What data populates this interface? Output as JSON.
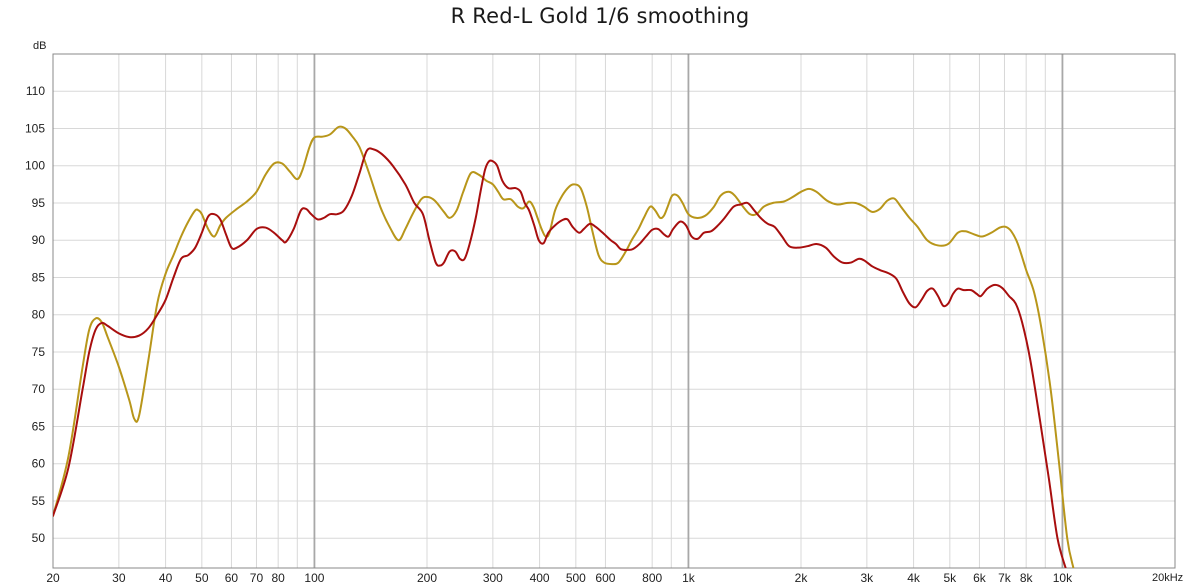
{
  "chart_data": {
    "type": "line",
    "title": "R Red-L Gold 1/6 smoothing",
    "ylabel": "dB",
    "xunit_label": "20kHz",
    "x_scale": "log",
    "xlim": [
      20,
      20000
    ],
    "ylim": [
      46,
      115
    ],
    "grid": true,
    "colors": {
      "grid_minor": "#d8d8d8",
      "grid_major": "#a8a8a8",
      "frame": "#888888"
    },
    "y_ticks": [
      50,
      55,
      60,
      65,
      70,
      75,
      80,
      85,
      90,
      95,
      100,
      105,
      110
    ],
    "x_ticks": [
      {
        "value": 20,
        "label": "20"
      },
      {
        "value": 30,
        "label": "30"
      },
      {
        "value": 40,
        "label": "40"
      },
      {
        "value": 50,
        "label": "50"
      },
      {
        "value": 60,
        "label": "60"
      },
      {
        "value": 70,
        "label": "70"
      },
      {
        "value": 80,
        "label": "80"
      },
      {
        "value": 100,
        "label": "100"
      },
      {
        "value": 200,
        "label": "200"
      },
      {
        "value": 300,
        "label": "300"
      },
      {
        "value": 400,
        "label": "400"
      },
      {
        "value": 500,
        "label": "500"
      },
      {
        "value": 600,
        "label": "600"
      },
      {
        "value": 800,
        "label": "800"
      },
      {
        "value": 1000,
        "label": "1k"
      },
      {
        "value": 2000,
        "label": "2k"
      },
      {
        "value": 3000,
        "label": "3k"
      },
      {
        "value": 4000,
        "label": "4k"
      },
      {
        "value": 5000,
        "label": "5k"
      },
      {
        "value": 6000,
        "label": "6k"
      },
      {
        "value": 7000,
        "label": "7k"
      },
      {
        "value": 8000,
        "label": "8k"
      },
      {
        "value": 10000,
        "label": "10k"
      }
    ],
    "x_minor_grid": [
      90,
      900,
      9000
    ],
    "x_major_grid": [
      100,
      1000,
      10000
    ],
    "series": [
      {
        "color": "#b8961a",
        "points": [
          [
            20,
            53
          ],
          [
            22,
            61
          ],
          [
            24,
            73
          ],
          [
            25,
            78
          ],
          [
            26,
            79.5
          ],
          [
            27,
            79
          ],
          [
            28,
            77
          ],
          [
            30,
            73
          ],
          [
            32,
            68.5
          ],
          [
            33,
            66
          ],
          [
            34,
            66.5
          ],
          [
            36,
            74
          ],
          [
            38,
            81.5
          ],
          [
            40,
            85.5
          ],
          [
            42,
            88
          ],
          [
            44,
            90.5
          ],
          [
            46,
            92.5
          ],
          [
            48,
            94
          ],
          [
            49,
            94
          ],
          [
            50,
            93.5
          ],
          [
            52,
            91.5
          ],
          [
            54,
            90.5
          ],
          [
            56,
            92
          ],
          [
            58,
            93
          ],
          [
            62,
            94.2
          ],
          [
            66,
            95.2
          ],
          [
            70,
            96.5
          ],
          [
            74,
            98.8
          ],
          [
            78,
            100.3
          ],
          [
            82,
            100.3
          ],
          [
            86,
            99.2
          ],
          [
            90,
            98.2
          ],
          [
            93,
            99.5
          ],
          [
            97,
            102.5
          ],
          [
            100,
            103.8
          ],
          [
            105,
            103.9
          ],
          [
            110,
            104.2
          ],
          [
            116,
            105.2
          ],
          [
            121,
            105
          ],
          [
            126,
            104
          ],
          [
            132,
            102.5
          ],
          [
            140,
            99
          ],
          [
            150,
            94.5
          ],
          [
            160,
            91.5
          ],
          [
            168,
            90
          ],
          [
            175,
            91.5
          ],
          [
            183,
            93.5
          ],
          [
            193,
            95.5
          ],
          [
            201,
            95.8
          ],
          [
            210,
            95.3
          ],
          [
            222,
            93.8
          ],
          [
            230,
            93
          ],
          [
            240,
            94
          ],
          [
            250,
            96.5
          ],
          [
            262,
            99
          ],
          [
            275,
            98.8
          ],
          [
            288,
            98
          ],
          [
            300,
            97.5
          ],
          [
            310,
            96.5
          ],
          [
            320,
            95.5
          ],
          [
            335,
            95.5
          ],
          [
            350,
            94.5
          ],
          [
            362,
            94.3
          ],
          [
            375,
            95.2
          ],
          [
            385,
            94.5
          ],
          [
            395,
            93
          ],
          [
            405,
            91.5
          ],
          [
            415,
            90.5
          ],
          [
            425,
            91
          ],
          [
            440,
            94
          ],
          [
            460,
            96
          ],
          [
            480,
            97.2
          ],
          [
            495,
            97.5
          ],
          [
            515,
            97
          ],
          [
            535,
            94.5
          ],
          [
            555,
            91
          ],
          [
            575,
            88
          ],
          [
            595,
            87
          ],
          [
            625,
            86.8
          ],
          [
            650,
            87
          ],
          [
            680,
            88.5
          ],
          [
            705,
            90
          ],
          [
            735,
            91.5
          ],
          [
            760,
            93
          ],
          [
            790,
            94.5
          ],
          [
            815,
            94
          ],
          [
            840,
            93
          ],
          [
            860,
            93.3
          ],
          [
            880,
            94.5
          ],
          [
            905,
            96
          ],
          [
            935,
            96
          ],
          [
            965,
            95
          ],
          [
            1000,
            93.5
          ],
          [
            1050,
            93
          ],
          [
            1110,
            93.3
          ],
          [
            1170,
            94.5
          ],
          [
            1220,
            96
          ],
          [
            1280,
            96.5
          ],
          [
            1330,
            96
          ],
          [
            1400,
            94.5
          ],
          [
            1460,
            93.5
          ],
          [
            1520,
            93.5
          ],
          [
            1590,
            94.5
          ],
          [
            1680,
            95
          ],
          [
            1800,
            95.2
          ],
          [
            1900,
            95.8
          ],
          [
            2000,
            96.5
          ],
          [
            2100,
            96.9
          ],
          [
            2200,
            96.5
          ],
          [
            2350,
            95.3
          ],
          [
            2500,
            94.8
          ],
          [
            2650,
            95
          ],
          [
            2800,
            95
          ],
          [
            2950,
            94.5
          ],
          [
            3100,
            93.8
          ],
          [
            3250,
            94.2
          ],
          [
            3400,
            95.3
          ],
          [
            3550,
            95.6
          ],
          [
            3700,
            94.5
          ],
          [
            3900,
            93
          ],
          [
            4100,
            91.8
          ],
          [
            4350,
            90
          ],
          [
            4650,
            89.3
          ],
          [
            4950,
            89.5
          ],
          [
            5250,
            91
          ],
          [
            5500,
            91.2
          ],
          [
            5800,
            90.8
          ],
          [
            6100,
            90.5
          ],
          [
            6450,
            91
          ],
          [
            6800,
            91.7
          ],
          [
            7050,
            91.8
          ],
          [
            7300,
            91.2
          ],
          [
            7600,
            89.5
          ],
          [
            8000,
            86
          ],
          [
            8400,
            83
          ],
          [
            8800,
            78
          ],
          [
            9300,
            70
          ],
          [
            9800,
            60
          ],
          [
            10300,
            50
          ],
          [
            10700,
            46
          ]
        ]
      },
      {
        "color": "#a80e0e",
        "points": [
          [
            20,
            53
          ],
          [
            22,
            59.5
          ],
          [
            24,
            70
          ],
          [
            25,
            75
          ],
          [
            26,
            78
          ],
          [
            27,
            78.9
          ],
          [
            28,
            78.5
          ],
          [
            30,
            77.5
          ],
          [
            32,
            77
          ],
          [
            34,
            77.2
          ],
          [
            36,
            78.2
          ],
          [
            38,
            80
          ],
          [
            40,
            82
          ],
          [
            42,
            85
          ],
          [
            44,
            87.5
          ],
          [
            46,
            88
          ],
          [
            48,
            89
          ],
          [
            50,
            91
          ],
          [
            52,
            93.2
          ],
          [
            54,
            93.5
          ],
          [
            56,
            92.8
          ],
          [
            58,
            90.8
          ],
          [
            60,
            89
          ],
          [
            62,
            89
          ],
          [
            66,
            90
          ],
          [
            70,
            91.5
          ],
          [
            74,
            91.7
          ],
          [
            78,
            91
          ],
          [
            82,
            90
          ],
          [
            84,
            89.8
          ],
          [
            88,
            91.5
          ],
          [
            92,
            94
          ],
          [
            95,
            94.2
          ],
          [
            98,
            93.5
          ],
          [
            102,
            92.8
          ],
          [
            106,
            93
          ],
          [
            110,
            93.5
          ],
          [
            115,
            93.5
          ],
          [
            120,
            94
          ],
          [
            126,
            96
          ],
          [
            132,
            99
          ],
          [
            138,
            102
          ],
          [
            144,
            102.2
          ],
          [
            152,
            101.5
          ],
          [
            162,
            100
          ],
          [
            175,
            97.5
          ],
          [
            185,
            95
          ],
          [
            195,
            93.5
          ],
          [
            203,
            90
          ],
          [
            211,
            87
          ],
          [
            217,
            86.6
          ],
          [
            222,
            87
          ],
          [
            230,
            88.5
          ],
          [
            238,
            88.5
          ],
          [
            245,
            87.5
          ],
          [
            252,
            87.5
          ],
          [
            260,
            89.5
          ],
          [
            270,
            93
          ],
          [
            278,
            96.5
          ],
          [
            286,
            99.5
          ],
          [
            293,
            100.6
          ],
          [
            300,
            100.6
          ],
          [
            308,
            100
          ],
          [
            318,
            98
          ],
          [
            330,
            97
          ],
          [
            345,
            97
          ],
          [
            356,
            96.5
          ],
          [
            365,
            95
          ],
          [
            375,
            94
          ],
          [
            387,
            92
          ],
          [
            398,
            90
          ],
          [
            410,
            89.6
          ],
          [
            422,
            91
          ],
          [
            440,
            92
          ],
          [
            460,
            92.7
          ],
          [
            475,
            92.8
          ],
          [
            490,
            91.8
          ],
          [
            510,
            91
          ],
          [
            525,
            91.5
          ],
          [
            545,
            92.2
          ],
          [
            565,
            91.8
          ],
          [
            590,
            91
          ],
          [
            620,
            90
          ],
          [
            640,
            89.5
          ],
          [
            660,
            88.8
          ],
          [
            690,
            88.7
          ],
          [
            710,
            88.8
          ],
          [
            740,
            89.5
          ],
          [
            770,
            90.5
          ],
          [
            800,
            91.4
          ],
          [
            830,
            91.5
          ],
          [
            860,
            90.8
          ],
          [
            885,
            90.5
          ],
          [
            910,
            91.5
          ],
          [
            950,
            92.5
          ],
          [
            985,
            92
          ],
          [
            1020,
            90.5
          ],
          [
            1060,
            90.2
          ],
          [
            1100,
            91
          ],
          [
            1150,
            91.2
          ],
          [
            1200,
            92
          ],
          [
            1250,
            93
          ],
          [
            1320,
            94.5
          ],
          [
            1380,
            94.8
          ],
          [
            1440,
            95
          ],
          [
            1500,
            94
          ],
          [
            1560,
            93
          ],
          [
            1630,
            92.2
          ],
          [
            1700,
            91.8
          ],
          [
            1780,
            90.5
          ],
          [
            1860,
            89.2
          ],
          [
            1960,
            89
          ],
          [
            2080,
            89.2
          ],
          [
            2200,
            89.5
          ],
          [
            2330,
            89
          ],
          [
            2450,
            87.8
          ],
          [
            2580,
            87
          ],
          [
            2720,
            87
          ],
          [
            2850,
            87.5
          ],
          [
            2950,
            87.3
          ],
          [
            3100,
            86.5
          ],
          [
            3250,
            86
          ],
          [
            3450,
            85.5
          ],
          [
            3600,
            84.8
          ],
          [
            3750,
            83
          ],
          [
            3900,
            81.5
          ],
          [
            4050,
            81
          ],
          [
            4200,
            82
          ],
          [
            4350,
            83.2
          ],
          [
            4500,
            83.5
          ],
          [
            4650,
            82.5
          ],
          [
            4800,
            81.2
          ],
          [
            4950,
            81.5
          ],
          [
            5100,
            82.8
          ],
          [
            5250,
            83.5
          ],
          [
            5450,
            83.3
          ],
          [
            5700,
            83.3
          ],
          [
            5900,
            82.8
          ],
          [
            6050,
            82.5
          ],
          [
            6300,
            83.5
          ],
          [
            6600,
            84
          ],
          [
            6900,
            83.6
          ],
          [
            7200,
            82.5
          ],
          [
            7500,
            81.5
          ],
          [
            7800,
            79
          ],
          [
            8200,
            74
          ],
          [
            8700,
            66
          ],
          [
            9200,
            58
          ],
          [
            9700,
            50
          ],
          [
            10200,
            46
          ]
        ]
      }
    ]
  }
}
